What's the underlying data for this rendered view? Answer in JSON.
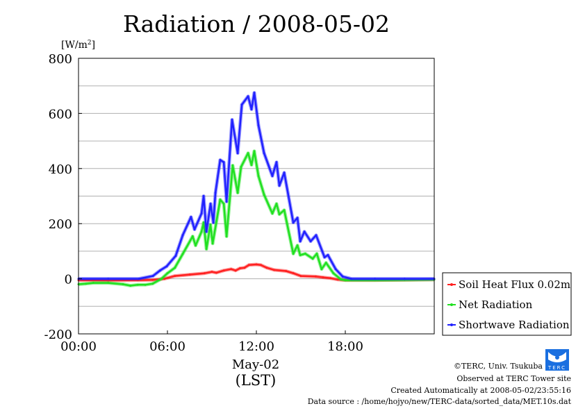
{
  "chart_data": {
    "type": "line",
    "title": "Radiation / 2008-05-02",
    "ylabel": "[W/m2]",
    "ylabel_base": "[W/m",
    "ylabel_sup": "2",
    "ylabel_close": "]",
    "xlabel_date": "May-02",
    "xlabel": "(LST)",
    "xlim": [
      0,
      24
    ],
    "ylim": [
      -200,
      800
    ],
    "xticks": [
      {
        "v": 0,
        "label": "00:00"
      },
      {
        "v": 6,
        "label": "06:00"
      },
      {
        "v": 12,
        "label": "12:00"
      },
      {
        "v": 18,
        "label": "18:00"
      }
    ],
    "yticks": [
      {
        "v": -200,
        "label": "-200"
      },
      {
        "v": 0,
        "label": "0"
      },
      {
        "v": 200,
        "label": "200"
      },
      {
        "v": 400,
        "label": "400"
      },
      {
        "v": 600,
        "label": "600"
      },
      {
        "v": 800,
        "label": "800"
      }
    ],
    "gridlines": [
      -100,
      0,
      100,
      200,
      300,
      400,
      500,
      600,
      700
    ],
    "legend_position": "right",
    "series": [
      {
        "name": "Soil Heat Flux 0.02m",
        "color": "#ff2020",
        "x": [
          0,
          2,
          4,
          5,
          5.8,
          6.5,
          7.5,
          8.5,
          9,
          9.3,
          9.8,
          10.3,
          10.6,
          10.9,
          11.2,
          11.5,
          12,
          12.3,
          12.7,
          13.2,
          14,
          14.5,
          15,
          16,
          16.5,
          17,
          17.5,
          18,
          20,
          22,
          24
        ],
        "y": [
          -5,
          -6,
          -5,
          -4,
          0,
          10,
          15,
          20,
          25,
          22,
          30,
          35,
          30,
          38,
          40,
          50,
          52,
          50,
          40,
          32,
          28,
          20,
          10,
          8,
          5,
          2,
          -3,
          -5,
          -5,
          -4,
          -3
        ]
      },
      {
        "name": "Net Radiation",
        "color": "#20e020",
        "x": [
          0,
          0.5,
          1,
          2,
          3,
          3.5,
          4,
          4.5,
          5,
          5.6,
          6,
          6.5,
          7.03,
          7.7,
          7.9,
          8.3,
          8.44,
          8.63,
          8.9,
          9.05,
          9.56,
          9.8,
          9.99,
          10.4,
          10.74,
          10.97,
          11.44,
          11.67,
          11.86,
          12.14,
          12.52,
          13.08,
          13.36,
          13.55,
          13.88,
          14.49,
          14.77,
          14.96,
          15.3,
          15.8,
          16.08,
          16.4,
          16.7,
          17.2,
          17.7,
          18,
          20,
          22,
          24
        ],
        "y": [
          -20,
          -18,
          -15,
          -15,
          -20,
          -25,
          -22,
          -22,
          -18,
          0,
          20,
          40,
          90,
          154,
          121,
          171,
          204,
          108,
          196,
          128,
          287,
          272,
          154,
          411,
          312,
          406,
          456,
          413,
          463,
          373,
          305,
          237,
          272,
          234,
          249,
          91,
          121,
          86,
          91,
          73,
          91,
          35,
          58,
          20,
          -2,
          -5,
          -5,
          -4,
          -3
        ]
      },
      {
        "name": "Shortwave Radiation",
        "color": "#2020ff",
        "x": [
          0,
          2,
          4.08,
          5.02,
          5.5,
          5.95,
          6.56,
          7.03,
          7.59,
          7.83,
          8.3,
          8.44,
          8.63,
          8.91,
          9.1,
          9.24,
          9.56,
          9.8,
          9.99,
          10.36,
          10.74,
          11.02,
          11.44,
          11.67,
          11.86,
          12.14,
          12.52,
          13.08,
          13.36,
          13.55,
          13.88,
          14.49,
          14.77,
          14.96,
          15.24,
          15.66,
          16.03,
          16.6,
          16.83,
          17.35,
          17.82,
          18.4,
          20,
          22,
          24
        ],
        "y": [
          0,
          0,
          0,
          10,
          30,
          45,
          83,
          158,
          224,
          179,
          237,
          300,
          171,
          272,
          204,
          312,
          431,
          423,
          280,
          577,
          456,
          632,
          662,
          615,
          675,
          557,
          456,
          373,
          423,
          338,
          385,
          204,
          221,
          136,
          171,
          136,
          158,
          78,
          86,
          35,
          8,
          0,
          0,
          0,
          0
        ]
      }
    ]
  },
  "footer": {
    "copyright": "©TERC, Univ. Tsukuba",
    "observed": "Observed at TERC Tower site",
    "created": "Created Automatically at 2008-05-02/23:55:16",
    "source": "Data source : /home/hojyo/new/TERC-data/sorted_data/MET.10s.dat",
    "logo_text": "TERC"
  }
}
